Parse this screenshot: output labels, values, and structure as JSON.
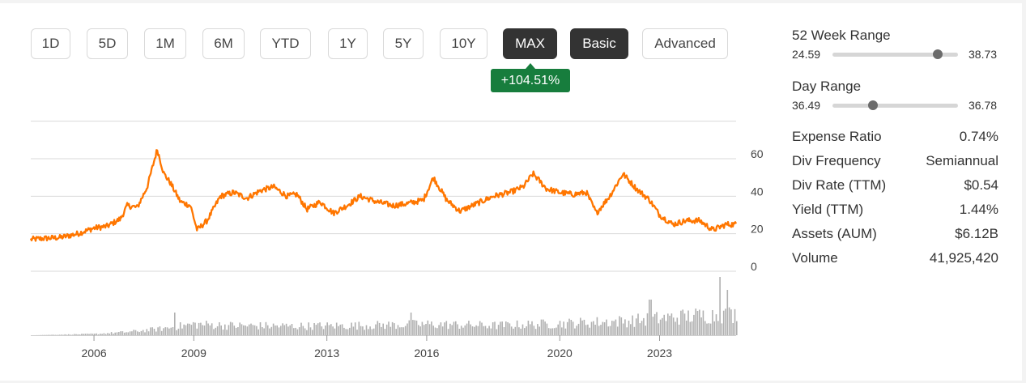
{
  "buttons": [
    {
      "label": "1D",
      "style": "plain"
    },
    {
      "label": "5D",
      "style": "plain"
    },
    {
      "label": "1M",
      "style": "plain"
    },
    {
      "label": "6M",
      "style": "plain"
    },
    {
      "label": "YTD",
      "style": "plain"
    },
    {
      "label": "1Y",
      "style": "plain"
    },
    {
      "label": "5Y",
      "style": "plain"
    },
    {
      "label": "10Y",
      "style": "plain"
    },
    {
      "label": "MAX",
      "style": "active"
    },
    {
      "label": "Basic",
      "style": "active"
    },
    {
      "label": "Advanced",
      "style": "plain"
    }
  ],
  "change_badge": "+104.51%",
  "ranges": [
    {
      "title": "52 Week Range",
      "low": "24.59",
      "high": "38.73",
      "position": 0.84
    },
    {
      "title": "Day Range",
      "low": "36.49",
      "high": "36.78",
      "position": 0.32
    }
  ],
  "stats": [
    {
      "label": "Expense Ratio",
      "value": "0.74%"
    },
    {
      "label": "Div Frequency",
      "value": "Semiannual"
    },
    {
      "label": "Div Rate (TTM)",
      "value": "$0.54"
    },
    {
      "label": "Yield (TTM)",
      "value": "1.44%"
    },
    {
      "label": "Assets (AUM)",
      "value": "$6.12B"
    },
    {
      "label": "Volume",
      "value": "41,925,420"
    }
  ],
  "colors": {
    "price_line": "#ff7600",
    "volume_bar": "#b0b0b0",
    "badge": "#177d3d",
    "active_button": "#333333"
  },
  "chart_data": {
    "type": "line",
    "title": "",
    "xlabel": "",
    "ylabel": "",
    "x_ticks": [
      "2006",
      "2009",
      "2013",
      "2016",
      "2020",
      "2023"
    ],
    "y_ticks": [
      "0",
      "20",
      "40",
      "60"
    ],
    "ylim": [
      0,
      80
    ],
    "xlim": [
      2004.1,
      2025.3
    ],
    "grid": true,
    "series": [
      {
        "values": [
          [
            2004.1,
            17
          ],
          [
            2004.5,
            17.5
          ],
          [
            2005.0,
            18
          ],
          [
            2005.5,
            20
          ],
          [
            2006.0,
            23
          ],
          [
            2006.4,
            24
          ],
          [
            2006.8,
            28
          ],
          [
            2007.0,
            35
          ],
          [
            2007.3,
            34
          ],
          [
            2007.6,
            45
          ],
          [
            2007.9,
            65
          ],
          [
            2008.1,
            52
          ],
          [
            2008.3,
            47
          ],
          [
            2008.6,
            37
          ],
          [
            2008.9,
            35
          ],
          [
            2009.1,
            22
          ],
          [
            2009.4,
            27
          ],
          [
            2009.8,
            40
          ],
          [
            2010.2,
            42
          ],
          [
            2010.6,
            39
          ],
          [
            2011.0,
            43
          ],
          [
            2011.4,
            45
          ],
          [
            2011.8,
            40
          ],
          [
            2012.1,
            41
          ],
          [
            2012.4,
            33
          ],
          [
            2012.8,
            37
          ],
          [
            2013.2,
            31
          ],
          [
            2013.6,
            35
          ],
          [
            2014.0,
            40
          ],
          [
            2014.5,
            37
          ],
          [
            2015.0,
            35
          ],
          [
            2015.4,
            36
          ],
          [
            2015.9,
            38
          ],
          [
            2016.2,
            50
          ],
          [
            2016.6,
            38
          ],
          [
            2017.0,
            32
          ],
          [
            2017.5,
            36
          ],
          [
            2018.0,
            40
          ],
          [
            2018.5,
            42
          ],
          [
            2018.9,
            45
          ],
          [
            2019.2,
            52
          ],
          [
            2019.6,
            44
          ],
          [
            2020.0,
            42
          ],
          [
            2020.4,
            41
          ],
          [
            2020.8,
            42
          ],
          [
            2021.1,
            31
          ],
          [
            2021.5,
            40
          ],
          [
            2021.9,
            52
          ],
          [
            2022.3,
            44
          ],
          [
            2022.7,
            38
          ],
          [
            2023.0,
            30
          ],
          [
            2023.4,
            25
          ],
          [
            2023.8,
            27
          ],
          [
            2024.2,
            27
          ],
          [
            2024.6,
            22
          ],
          [
            2025.0,
            25
          ],
          [
            2025.3,
            25
          ]
        ]
      }
    ],
    "volume_level": [
      [
        2004.1,
        0
      ],
      [
        2006.0,
        0.02
      ],
      [
        2007.0,
        0.05
      ],
      [
        2008.0,
        0.1
      ],
      [
        2009.0,
        0.17
      ],
      [
        2010.0,
        0.15
      ],
      [
        2012.0,
        0.14
      ],
      [
        2014.0,
        0.15
      ],
      [
        2016.0,
        0.17
      ],
      [
        2018.0,
        0.15
      ],
      [
        2020.0,
        0.18
      ],
      [
        2022.0,
        0.22
      ],
      [
        2023.0,
        0.26
      ],
      [
        2024.0,
        0.3
      ],
      [
        2025.3,
        0.32
      ]
    ],
    "volume_spikes": [
      [
        2008.4,
        0.35
      ],
      [
        2015.5,
        0.35
      ],
      [
        2022.7,
        0.55
      ],
      [
        2024.8,
        0.9
      ],
      [
        2025.0,
        0.7
      ]
    ]
  }
}
